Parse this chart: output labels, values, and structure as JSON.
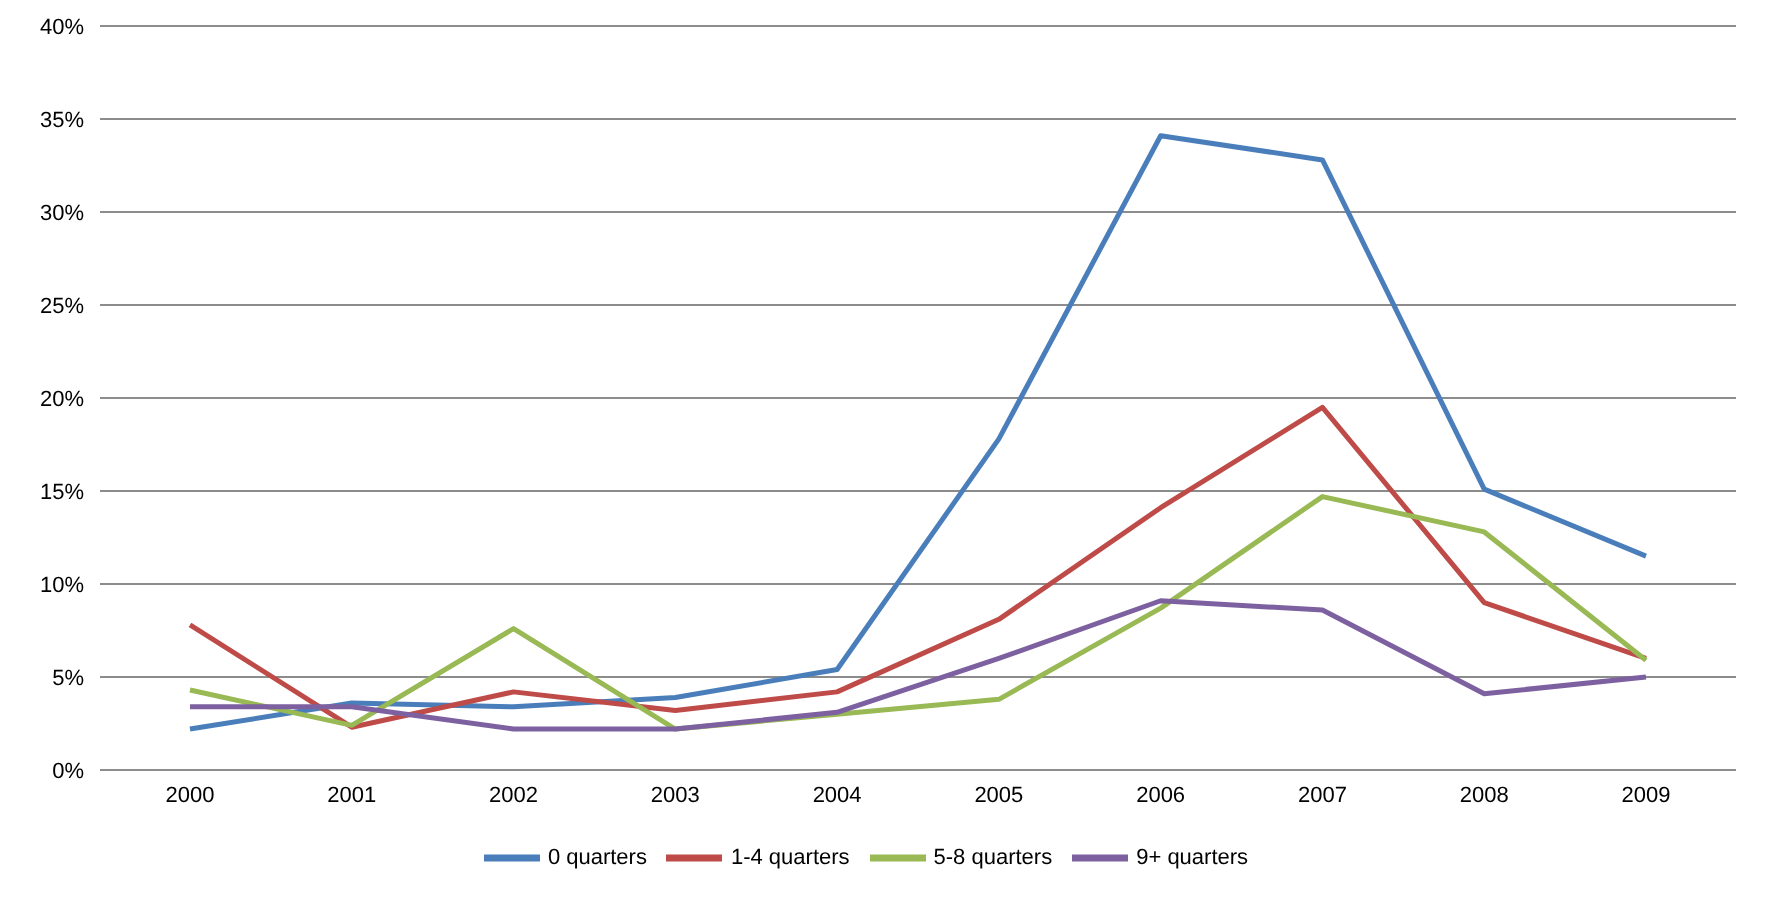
{
  "chart_data": {
    "type": "line",
    "categories": [
      "2000",
      "2001",
      "2002",
      "2003",
      "2004",
      "2005",
      "2006",
      "2007",
      "2008",
      "2009"
    ],
    "series": [
      {
        "name": "0 quarters",
        "color": "#4a7ebb",
        "values": [
          2.2,
          3.6,
          3.4,
          3.9,
          5.4,
          17.8,
          34.1,
          32.8,
          15.1,
          11.5
        ]
      },
      {
        "name": "1-4 quarters",
        "color": "#be4b48",
        "values": [
          7.8,
          2.3,
          4.2,
          3.2,
          4.2,
          8.1,
          14.1,
          19.5,
          9.0,
          6.0
        ]
      },
      {
        "name": "5-8 quarters",
        "color": "#98b954",
        "values": [
          4.3,
          2.4,
          7.6,
          2.2,
          3.0,
          3.8,
          8.7,
          14.7,
          12.8,
          5.9
        ]
      },
      {
        "name": "9+ quarters",
        "color": "#7d60a0",
        "values": [
          3.4,
          3.4,
          2.2,
          2.2,
          3.1,
          6.0,
          9.1,
          8.6,
          4.1,
          5.0
        ]
      }
    ],
    "ylim": [
      0,
      40
    ],
    "yticks": [
      {
        "value": 0,
        "label": "0%"
      },
      {
        "value": 5,
        "label": "5%"
      },
      {
        "value": 10,
        "label": "10%"
      },
      {
        "value": 15,
        "label": "15%"
      },
      {
        "value": 20,
        "label": "20%"
      },
      {
        "value": 25,
        "label": "25%"
      },
      {
        "value": 30,
        "label": "30%"
      },
      {
        "value": 35,
        "label": "35%"
      },
      {
        "value": 40,
        "label": "40%"
      }
    ],
    "grid": "y",
    "legend": "bottom",
    "marker": "none",
    "line_style": "solid"
  }
}
